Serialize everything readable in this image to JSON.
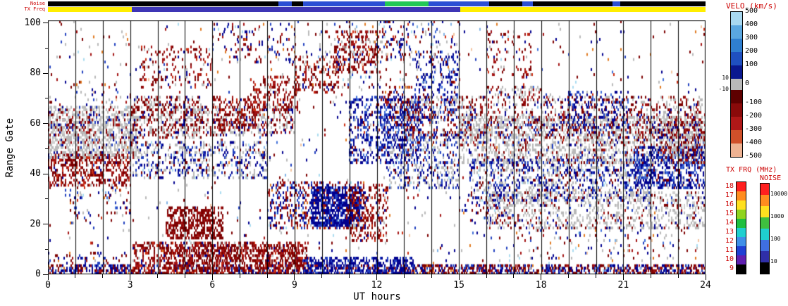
{
  "labels": {
    "noise_strip": "Noise",
    "txfreq_strip": "TX Freq",
    "xlabel": "UT hours",
    "ylabel": "Range Gate",
    "velo_legend": "VELO (km/s)",
    "txfrq_legend": "TX FRQ (MHz)",
    "noise_legend": "NOISE"
  },
  "axes": {
    "x_range": [
      0,
      24
    ],
    "y_range": [
      0,
      101
    ],
    "x_major_ticks": [
      0,
      3,
      6,
      9,
      12,
      15,
      18,
      21,
      24
    ],
    "x_minor_step": 1,
    "y_major_ticks": [
      0,
      20,
      40,
      60,
      80,
      100
    ],
    "y_minor_step": 10,
    "gridlines_hourly": true
  },
  "velo_colorbar": {
    "labels_right": [
      "500",
      "400",
      "300",
      "200",
      "100",
      "0",
      "-100",
      "-200",
      "-300",
      "-400",
      "-500"
    ],
    "labels_left": [
      "10",
      "-10"
    ],
    "blue_segments": [
      "#a8d8f0",
      "#5aa7e0",
      "#2f7fd0",
      "#1f50c0",
      "#0a188f"
    ],
    "zero_color": "#b8b8b8",
    "red_segments": [
      "#5e0000",
      "#8a0a0a",
      "#b01818",
      "#d0502a",
      "#eeb292"
    ]
  },
  "txfrq_colorbar": {
    "labels": [
      "18",
      "17",
      "16",
      "15",
      "14",
      "13",
      "12",
      "11",
      "10",
      "9"
    ],
    "segments": [
      "#ff1f1f",
      "#ff8c1f",
      "#ffe01f",
      "#8fd41f",
      "#1fbf3f",
      "#1fcfcf",
      "#3f8fe8",
      "#1f3fd4",
      "#5f1fb0",
      "#000000"
    ]
  },
  "noise_colorbar": {
    "labels": [
      "10000",
      "1000",
      "100",
      "10"
    ],
    "segments": [
      "#ff1f1f",
      "#ff8c1f",
      "#ffe01f",
      "#3fbf3f",
      "#1fcfcf",
      "#3f6fe0",
      "#2f2fa8",
      "#000000"
    ]
  },
  "strips": {
    "noise_segments": [
      [
        0,
        8.4,
        "#000000"
      ],
      [
        8.4,
        8.9,
        "#2b4fd4"
      ],
      [
        8.9,
        9.3,
        "#000000"
      ],
      [
        9.3,
        12.3,
        "#2b4fd4"
      ],
      [
        12.3,
        13.9,
        "#22c855"
      ],
      [
        13.9,
        16.1,
        "#2b4fd4"
      ],
      [
        16.1,
        17.3,
        "#000000"
      ],
      [
        17.3,
        17.7,
        "#2b4fd4"
      ],
      [
        17.7,
        20.6,
        "#000000"
      ],
      [
        20.6,
        20.9,
        "#2b4fd4"
      ],
      [
        20.9,
        24,
        "#000000"
      ]
    ],
    "txfreq_segments": [
      [
        0,
        3.05,
        "#ffee00"
      ],
      [
        3.05,
        15.05,
        "#3d35b5"
      ],
      [
        15.05,
        24,
        "#ffee00"
      ]
    ]
  },
  "seed": 42,
  "chart_data": {
    "type": "heatmap",
    "title": "SuperDARN radar range-time velocity summary plot",
    "xlabel": "UT hours",
    "ylabel": "Range Gate",
    "xlim": [
      0,
      24
    ],
    "ylim": [
      0,
      101
    ],
    "velocity_colorbar_km_s": [
      -500,
      500
    ],
    "ground_scatter_color": "gray",
    "tx_frequency_MHz_range": [
      9,
      18
    ],
    "tx_frequency_timeline": "yellow (~16 MHz) 0-3 UT, indigo (~10 MHz) 3-15 UT, yellow 15-24 UT",
    "palette": {
      "red_dark": "#7e0000",
      "red": "#a31212",
      "red_bright": "#cc2e12",
      "orange": "#e0791f",
      "peach": "#f2c4a0",
      "gray": "#b9b9b9",
      "gray_light": "#d0d0d0",
      "blue_dark": "#00008f",
      "blue": "#1f3fbf",
      "blue_med": "#3f6fd9",
      "lightblue": "#7fb2e5",
      "cyan": "#aadcf0"
    },
    "mixes": {
      "rb": [
        [
          "red_dark",
          0.28
        ],
        [
          "red",
          0.18
        ],
        [
          "blue_dark",
          0.3
        ],
        [
          "blue",
          0.14
        ],
        [
          "orange",
          0.05
        ],
        [
          "cyan",
          0.05
        ]
      ],
      "red": [
        [
          "red_dark",
          0.45
        ],
        [
          "red",
          0.33
        ],
        [
          "red_bright",
          0.1
        ],
        [
          "gray",
          0.06
        ],
        [
          "blue_dark",
          0.06
        ]
      ],
      "red_solid": [
        [
          "red_dark",
          0.72
        ],
        [
          "red",
          0.28
        ]
      ],
      "blue": [
        [
          "blue_dark",
          0.5
        ],
        [
          "blue",
          0.28
        ],
        [
          "blue_med",
          0.1
        ],
        [
          "gray",
          0.06
        ],
        [
          "red_dark",
          0.06
        ]
      ],
      "blue_solid": [
        [
          "blue_dark",
          0.75
        ],
        [
          "blue",
          0.25
        ]
      ],
      "gray": [
        [
          "gray",
          0.58
        ],
        [
          "gray_light",
          0.15
        ],
        [
          "red_dark",
          0.1
        ],
        [
          "red",
          0.05
        ],
        [
          "blue_dark",
          0.07
        ],
        [
          "blue",
          0.05
        ]
      ],
      "grayblue": [
        [
          "gray",
          0.38
        ],
        [
          "blue_dark",
          0.26
        ],
        [
          "blue",
          0.2
        ],
        [
          "red_dark",
          0.1
        ],
        [
          "cyan",
          0.06
        ]
      ],
      "grayred": [
        [
          "gray",
          0.42
        ],
        [
          "red_dark",
          0.3
        ],
        [
          "red",
          0.16
        ],
        [
          "blue_dark",
          0.12
        ]
      ],
      "spk": [
        [
          "red_dark",
          0.18
        ],
        [
          "red",
          0.1
        ],
        [
          "blue_dark",
          0.18
        ],
        [
          "blue",
          0.1
        ],
        [
          "gray",
          0.2
        ],
        [
          "orange",
          0.06
        ],
        [
          "cyan",
          0.06
        ],
        [
          "red_bright",
          0.04
        ],
        [
          "blue_med",
          0.04
        ],
        [
          "peach",
          0.02
        ],
        [
          "lightblue",
          0.02
        ],
        [
          "gray_light",
          0.1
        ]
      ]
    },
    "bands": [
      [
        0,
        24,
        0,
        101,
        0.018,
        "spk"
      ],
      [
        0,
        24,
        0,
        3,
        0.45,
        "rb"
      ],
      [
        0,
        3,
        0,
        8,
        0.2,
        "rb"
      ],
      [
        0.8,
        3,
        20,
        34,
        0.1,
        "spk"
      ],
      [
        0,
        3,
        35,
        47,
        0.45,
        "red"
      ],
      [
        0,
        3.2,
        46,
        66,
        0.55,
        "gray"
      ],
      [
        0,
        1.5,
        52,
        62,
        0.25,
        "grayred"
      ],
      [
        1,
        3,
        66,
        76,
        0.08,
        "spk"
      ],
      [
        3.1,
        5.6,
        54,
        70,
        0.4,
        "grayred"
      ],
      [
        3.1,
        8,
        38,
        52,
        0.3,
        "grayblue"
      ],
      [
        3.4,
        6,
        74,
        90,
        0.16,
        "red"
      ],
      [
        6,
        9,
        84,
        99,
        0.12,
        "rb"
      ],
      [
        3.1,
        9.5,
        0,
        12,
        0.45,
        "red"
      ],
      [
        4.3,
        9.3,
        2,
        11,
        0.3,
        "red_solid"
      ],
      [
        4.3,
        6.4,
        14,
        26,
        0.55,
        "red_solid"
      ],
      [
        5,
        9,
        55,
        66,
        0.35,
        "grayred"
      ],
      [
        6,
        7.6,
        58,
        70,
        0.3,
        "red"
      ],
      [
        7.4,
        9.1,
        65,
        78,
        0.3,
        "red"
      ],
      [
        9,
        10.6,
        72,
        86,
        0.3,
        "red"
      ],
      [
        10.4,
        12.1,
        80,
        96,
        0.3,
        "red"
      ],
      [
        8,
        11.6,
        18,
        36,
        0.35,
        "rb"
      ],
      [
        9.6,
        11.4,
        19,
        34,
        0.65,
        "blue_solid"
      ],
      [
        10.9,
        12.4,
        13,
        35,
        0.35,
        "red"
      ],
      [
        9.3,
        13.3,
        0,
        6,
        0.5,
        "blue_solid"
      ],
      [
        11,
        13.6,
        44,
        70,
        0.35,
        "blue"
      ],
      [
        12,
        13.2,
        58,
        74,
        0.25,
        "rb"
      ],
      [
        12.4,
        15,
        34,
        56,
        0.35,
        "grayblue"
      ],
      [
        13,
        16,
        54,
        70,
        0.3,
        "grayred"
      ],
      [
        13.4,
        15,
        60,
        88,
        0.18,
        "blue"
      ],
      [
        9.5,
        15,
        74,
        101,
        0.07,
        "spk"
      ],
      [
        12.2,
        13.2,
        85,
        101,
        0.15,
        "rb"
      ],
      [
        13.3,
        24,
        0,
        3,
        0.35,
        "rb"
      ],
      [
        15,
        17,
        20,
        30,
        0.2,
        "rb"
      ],
      [
        15,
        24,
        44,
        62,
        0.45,
        "gray"
      ],
      [
        15.4,
        22,
        29,
        45,
        0.38,
        "grayblue"
      ],
      [
        16,
        24,
        18,
        32,
        0.3,
        "gray"
      ],
      [
        16,
        18,
        58,
        74,
        0.28,
        "grayred"
      ],
      [
        16,
        17.6,
        78,
        96,
        0.15,
        "red"
      ],
      [
        17,
        24,
        6,
        18,
        0.08,
        "spk"
      ],
      [
        18,
        24,
        54,
        70,
        0.26,
        "grayred"
      ],
      [
        19,
        21.2,
        58,
        72,
        0.22,
        "blue"
      ],
      [
        21.4,
        24,
        34,
        50,
        0.5,
        "blue"
      ],
      [
        22.4,
        24,
        44,
        60,
        0.4,
        "grayred"
      ]
    ]
  }
}
